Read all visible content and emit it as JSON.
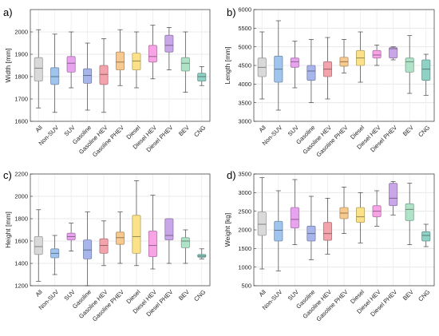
{
  "chart_data": [
    {
      "panel": "a)",
      "type": "box",
      "ylabel": "Width [mm]",
      "ylim": [
        1600,
        2100
      ],
      "yticks": [
        1600,
        1700,
        1800,
        1900,
        2000
      ],
      "grid": true,
      "categories": [
        "All",
        "Non-SUV",
        "SUV",
        "Gasoline",
        "Gasoline HEV",
        "Gasoline PHEV",
        "Diesel",
        "Diesel HEV",
        "Diesel PHEV",
        "BEV",
        "CNG"
      ],
      "colors": [
        "#d9d9d9",
        "#9fc5ee",
        "#e8a3ee",
        "#a8b5ea",
        "#f3a3ab",
        "#f8c98e",
        "#fbe289",
        "#f7a3e5",
        "#c9a6e8",
        "#aee3c7",
        "#8fd1c5"
      ],
      "boxes": [
        {
          "min": 1660,
          "q1": 1780,
          "median": 1838,
          "q3": 1885,
          "max": 2010
        },
        {
          "min": 1640,
          "q1": 1765,
          "median": 1800,
          "q3": 1840,
          "max": 1990
        },
        {
          "min": 1750,
          "q1": 1820,
          "median": 1860,
          "q3": 1890,
          "max": 2000
        },
        {
          "min": 1650,
          "q1": 1770,
          "median": 1805,
          "q3": 1835,
          "max": 1950
        },
        {
          "min": 1640,
          "q1": 1765,
          "median": 1810,
          "q3": 1850,
          "max": 1970
        },
        {
          "min": 1760,
          "q1": 1830,
          "median": 1865,
          "q3": 1910,
          "max": 2010
        },
        {
          "min": 1750,
          "q1": 1830,
          "median": 1870,
          "q3": 1905,
          "max": 2000
        },
        {
          "min": 1790,
          "q1": 1865,
          "median": 1890,
          "q3": 1940,
          "max": 2030
        },
        {
          "min": 1830,
          "q1": 1910,
          "median": 1940,
          "q3": 1985,
          "max": 2020
        },
        {
          "min": 1730,
          "q1": 1825,
          "median": 1860,
          "q3": 1885,
          "max": 2000
        },
        {
          "min": 1760,
          "q1": 1780,
          "median": 1800,
          "q3": 1815,
          "max": 1845
        }
      ]
    },
    {
      "panel": "b)",
      "type": "box",
      "ylabel": "Length [mm]",
      "ylim": [
        3000,
        6000
      ],
      "yticks": [
        3000,
        3500,
        4000,
        4500,
        5000,
        5500,
        6000
      ],
      "grid": true,
      "categories": [
        "All",
        "Non-SUV",
        "SUV",
        "Gasoline",
        "Gasoline HEV",
        "Gasoline PHEV",
        "Diesel",
        "Diesel HEV",
        "Diesel PHEV",
        "BEV",
        "CNG"
      ],
      "colors": [
        "#d9d9d9",
        "#9fc5ee",
        "#e8a3ee",
        "#a8b5ea",
        "#f3a3ab",
        "#f8c98e",
        "#fbe289",
        "#f7a3e5",
        "#c9a6e8",
        "#aee3c7",
        "#8fd1c5"
      ],
      "boxes": [
        {
          "min": 3600,
          "q1": 4200,
          "median": 4450,
          "q3": 4700,
          "max": 5400
        },
        {
          "min": 3300,
          "q1": 4050,
          "median": 4400,
          "q3": 4750,
          "max": 5700
        },
        {
          "min": 3900,
          "q1": 4450,
          "median": 4600,
          "q3": 4700,
          "max": 5150
        },
        {
          "min": 3500,
          "q1": 4100,
          "median": 4350,
          "q3": 4500,
          "max": 5200
        },
        {
          "min": 3600,
          "q1": 4200,
          "median": 4400,
          "q3": 4600,
          "max": 5250
        },
        {
          "min": 4300,
          "q1": 4480,
          "median": 4600,
          "q3": 4720,
          "max": 5200
        },
        {
          "min": 4050,
          "q1": 4500,
          "median": 4700,
          "q3": 4900,
          "max": 5400
        },
        {
          "min": 4500,
          "q1": 4700,
          "median": 4780,
          "q3": 4900,
          "max": 5050
        },
        {
          "min": 4650,
          "q1": 4700,
          "median": 4950,
          "q3": 4980,
          "max": 5000
        },
        {
          "min": 3750,
          "q1": 4320,
          "median": 4600,
          "q3": 4700,
          "max": 5300
        },
        {
          "min": 3700,
          "q1": 4100,
          "median": 4400,
          "q3": 4650,
          "max": 4800
        }
      ]
    },
    {
      "panel": "c)",
      "type": "box",
      "ylabel": "Height [mm]",
      "ylim": [
        1200,
        2200
      ],
      "yticks": [
        1200,
        1400,
        1600,
        1800,
        2000,
        2200
      ],
      "grid": true,
      "categories": [
        "All",
        "Non-SUV",
        "SUV",
        "Gasoline",
        "Gasoline HEV",
        "Gasoline PHEV",
        "Diesel",
        "Diesel HEV",
        "Diesel PHEV",
        "BEV",
        "CNG"
      ],
      "colors": [
        "#d9d9d9",
        "#9fc5ee",
        "#e8a3ee",
        "#a8b5ea",
        "#f3a3ab",
        "#f8c98e",
        "#fbe289",
        "#f7a3e5",
        "#c9a6e8",
        "#aee3c7",
        "#8fd1c5"
      ],
      "boxes": [
        {
          "min": 1240,
          "q1": 1480,
          "median": 1550,
          "q3": 1640,
          "max": 1880
        },
        {
          "min": 1300,
          "q1": 1450,
          "median": 1490,
          "q3": 1530,
          "max": 1650
        },
        {
          "min": 1510,
          "q1": 1610,
          "median": 1640,
          "q3": 1670,
          "max": 1760
        },
        {
          "min": 1200,
          "q1": 1440,
          "median": 1520,
          "q3": 1610,
          "max": 1860
        },
        {
          "min": 1380,
          "q1": 1490,
          "median": 1560,
          "q3": 1620,
          "max": 1780
        },
        {
          "min": 1400,
          "q1": 1570,
          "median": 1630,
          "q3": 1680,
          "max": 1860
        },
        {
          "min": 1380,
          "q1": 1490,
          "median": 1640,
          "q3": 1830,
          "max": 2140
        },
        {
          "min": 1350,
          "q1": 1460,
          "median": 1560,
          "q3": 1690,
          "max": 2010
        },
        {
          "min": 1400,
          "q1": 1610,
          "median": 1650,
          "q3": 1800,
          "max": 1800
        },
        {
          "min": 1400,
          "q1": 1540,
          "median": 1600,
          "q3": 1630,
          "max": 1700
        },
        {
          "min": 1440,
          "q1": 1455,
          "median": 1465,
          "q3": 1480,
          "max": 1530
        }
      ]
    },
    {
      "panel": "d)",
      "type": "box",
      "ylabel": "Weight [kg]",
      "ylim": [
        500,
        3500
      ],
      "yticks": [
        500,
        1000,
        1500,
        2000,
        2500,
        3000,
        3500
      ],
      "grid": true,
      "categories": [
        "All",
        "Non-SUV",
        "SUV",
        "Gasoline",
        "Gasoline HEV",
        "Gasoline PHEV",
        "Diesel",
        "Diesel HEV",
        "Diesel PHEV",
        "BEV",
        "CNG"
      ],
      "colors": [
        "#d9d9d9",
        "#9fc5ee",
        "#e8a3ee",
        "#a8b5ea",
        "#f3a3ab",
        "#f8c98e",
        "#fbe289",
        "#f7a3e5",
        "#c9a6e8",
        "#aee3c7",
        "#8fd1c5"
      ],
      "boxes": [
        {
          "min": 950,
          "q1": 1850,
          "median": 2150,
          "q3": 2480,
          "max": 3400
        },
        {
          "min": 900,
          "q1": 1700,
          "median": 1990,
          "q3": 2230,
          "max": 3050
        },
        {
          "min": 1600,
          "q1": 2050,
          "median": 2280,
          "q3": 2600,
          "max": 3350
        },
        {
          "min": 1200,
          "q1": 1700,
          "median": 1900,
          "q3": 2100,
          "max": 2900
        },
        {
          "min": 1350,
          "q1": 1720,
          "median": 1900,
          "q3": 2200,
          "max": 2850
        },
        {
          "min": 1900,
          "q1": 2300,
          "median": 2450,
          "q3": 2600,
          "max": 3150
        },
        {
          "min": 1650,
          "q1": 2200,
          "median": 2350,
          "q3": 2600,
          "max": 3000
        },
        {
          "min": 2100,
          "q1": 2350,
          "median": 2500,
          "q3": 2650,
          "max": 3050
        },
        {
          "min": 2400,
          "q1": 2650,
          "median": 2850,
          "q3": 3250,
          "max": 3300
        },
        {
          "min": 1600,
          "q1": 2250,
          "median": 2550,
          "q3": 2700,
          "max": 3250
        },
        {
          "min": 1550,
          "q1": 1700,
          "median": 1850,
          "q3": 1950,
          "max": 2150
        }
      ]
    }
  ]
}
